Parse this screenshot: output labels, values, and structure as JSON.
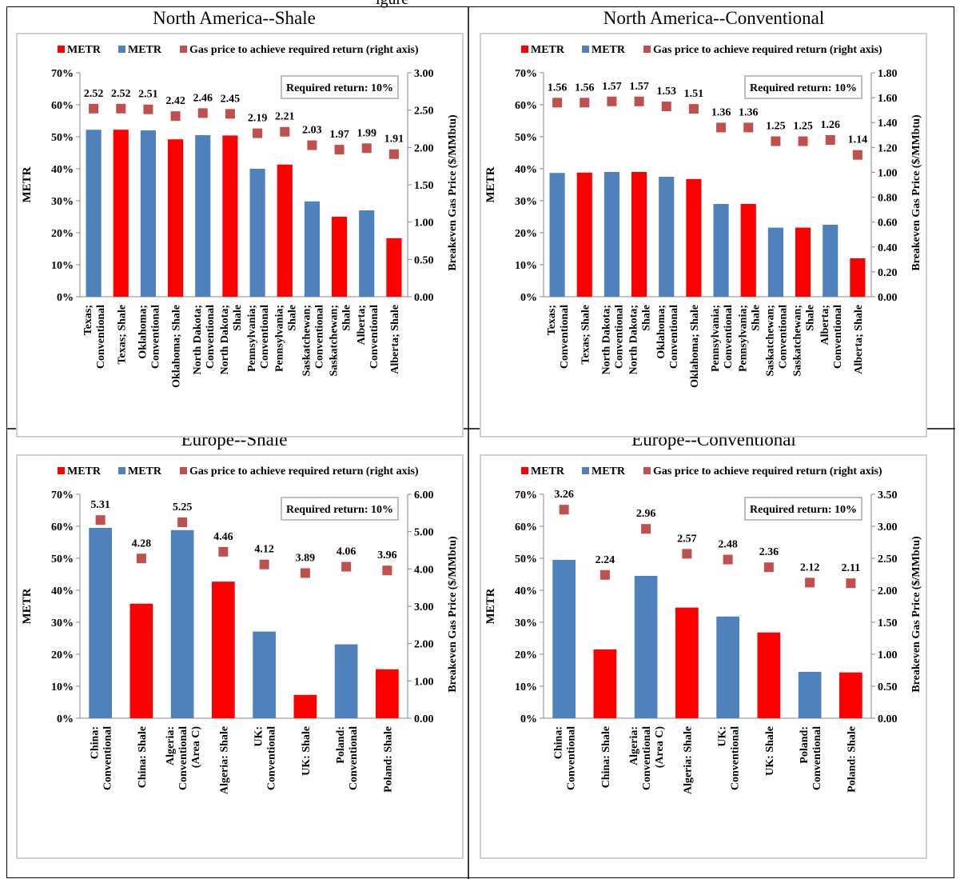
{
  "page_title_fragment": "igure",
  "colors": {
    "shale": "#ff0000",
    "conventional": "#4f81bd",
    "gas_price": "#c0504d"
  },
  "chart_data": [
    {
      "type": "bar",
      "title": "North America--Shale",
      "legend": [
        {
          "label": "METR",
          "color": "#ff0000",
          "shape": "square"
        },
        {
          "label": "METR",
          "color": "#4f81bd",
          "shape": "square"
        },
        {
          "label": "Gas price to achieve required return (right axis)",
          "color": "#c0504d",
          "shape": "square"
        }
      ],
      "legend_placement": "top",
      "annotation": "Required return: 10%",
      "ylabel": "METR",
      "y2label": "Breakeven Gas Price ($/MMbtu)",
      "ylim": [
        0,
        70
      ],
      "y_ticks": [
        "0%",
        "10%",
        "20%",
        "30%",
        "40%",
        "50%",
        "60%",
        "70%"
      ],
      "y2lim": [
        0,
        3
      ],
      "y2_ticks": [
        "0.00",
        "0.50",
        "1.00",
        "1.50",
        "2.00",
        "2.50",
        "3.00"
      ],
      "categories": [
        [
          "Texas;",
          "Conventional"
        ],
        [
          "Texas; Shale"
        ],
        [
          "Oklahoma;",
          "Conventional"
        ],
        [
          "Oklahoma; Shale"
        ],
        [
          "North Dakota;",
          "Conventional"
        ],
        [
          "North Dakota;",
          "Shale"
        ],
        [
          "Pennsylvania;",
          "Conventional"
        ],
        [
          "Pennsylvania;",
          "Shale"
        ],
        [
          "Saskatchewan;",
          "Conventional"
        ],
        [
          "Saskatchewan;",
          "Shale"
        ],
        [
          "Alberta;",
          "Conventional"
        ],
        [
          "Alberta; Shale"
        ]
      ],
      "bar_types": [
        "conventional",
        "shale",
        "conventional",
        "shale",
        "conventional",
        "shale",
        "conventional",
        "shale",
        "conventional",
        "shale",
        "conventional",
        "shale"
      ],
      "metr": [
        52.2,
        52.2,
        52,
        49.2,
        50.5,
        50.4,
        40,
        41.3,
        29.8,
        25,
        27,
        18.3
      ],
      "gas_price": [
        2.52,
        2.52,
        2.51,
        2.42,
        2.46,
        2.45,
        2.19,
        2.21,
        2.03,
        1.97,
        1.99,
        1.91
      ],
      "gas_price_labels": [
        "2.52",
        "2.52",
        "2.51",
        "2.42",
        "2.46",
        "2.45",
        "2.19",
        "2.21",
        "2.03",
        "1.97",
        "1.99",
        "1.91"
      ]
    },
    {
      "type": "bar",
      "title": "North America--Conventional",
      "legend": [
        {
          "label": "METR",
          "color": "#ff0000",
          "shape": "square"
        },
        {
          "label": "METR",
          "color": "#4f81bd",
          "shape": "square"
        },
        {
          "label": "Gas price to achieve required return (right axis)",
          "color": "#c0504d",
          "shape": "square"
        }
      ],
      "legend_placement": "top",
      "annotation": "Required return: 10%",
      "ylabel": "METR",
      "y2label": "Breakeven Gas Price ($/MMbtu)",
      "ylim": [
        0,
        70
      ],
      "y_ticks": [
        "0%",
        "10%",
        "20%",
        "30%",
        "40%",
        "50%",
        "60%",
        "70%"
      ],
      "y2lim": [
        0,
        1.8
      ],
      "y2_ticks": [
        "0.00",
        "0.20",
        "0.40",
        "0.60",
        "0.80",
        "1.00",
        "1.20",
        "1.40",
        "1.60",
        "1.80"
      ],
      "categories": [
        [
          "Texas;",
          "Conventional"
        ],
        [
          "Texas; Shale"
        ],
        [
          "North Dakota;",
          "Conventional"
        ],
        [
          "North Dakota;",
          "Shale"
        ],
        [
          "Oklahoma;",
          "Conventional"
        ],
        [
          "Oklahoma; Shale"
        ],
        [
          "Pennsylvania;",
          "Conventional"
        ],
        [
          "Pennsylvania;",
          "Shale"
        ],
        [
          "Saskatchewan;",
          "Conventional"
        ],
        [
          "Saskatchewan;",
          "Shale"
        ],
        [
          "Alberta;",
          "Conventional"
        ],
        [
          "Alberta; Shale"
        ]
      ],
      "bar_types": [
        "conventional",
        "shale",
        "conventional",
        "shale",
        "conventional",
        "shale",
        "conventional",
        "shale",
        "conventional",
        "shale",
        "conventional",
        "shale"
      ],
      "metr": [
        38.7,
        38.8,
        39,
        39,
        37.5,
        36.8,
        29,
        29,
        21.6,
        21.6,
        22.5,
        12
      ],
      "gas_price": [
        1.56,
        1.56,
        1.57,
        1.57,
        1.53,
        1.51,
        1.36,
        1.36,
        1.25,
        1.25,
        1.26,
        1.14
      ],
      "gas_price_labels": [
        "1.56",
        "1.56",
        "1.57",
        "1.57",
        "1.53",
        "1.51",
        "1.36",
        "1.36",
        "1.25",
        "1.25",
        "1.26",
        "1.14"
      ]
    },
    {
      "type": "bar",
      "title": "Europe--Shale",
      "legend": [
        {
          "label": "METR",
          "color": "#ff0000",
          "shape": "square"
        },
        {
          "label": "METR",
          "color": "#4f81bd",
          "shape": "square"
        },
        {
          "label": "Gas price to achieve required return (right axis)",
          "color": "#c0504d",
          "shape": "square"
        }
      ],
      "legend_placement": "top",
      "annotation": "Required return: 10%",
      "ylabel": "METR",
      "y2label": "Breakeven Gas Price ($/MMbtu)",
      "ylim": [
        0,
        70
      ],
      "y_ticks": [
        "0%",
        "10%",
        "20%",
        "30%",
        "40%",
        "50%",
        "60%",
        "70%"
      ],
      "y2lim": [
        0,
        6
      ],
      "y2_ticks": [
        "0.00",
        "1.00",
        "2.00",
        "3.00",
        "4.00",
        "5.00",
        "6.00"
      ],
      "categories": [
        [
          "China:",
          "Conventional"
        ],
        [
          "China: Shale"
        ],
        [
          "Algeria:",
          "Conventional",
          "(Area C)"
        ],
        [
          "Algeria: Shale"
        ],
        [
          "UK:",
          "Conventional"
        ],
        [
          "UK: Shale"
        ],
        [
          "Poland:",
          "Conventional"
        ],
        [
          "Poland: Shale"
        ]
      ],
      "bar_types": [
        "conventional",
        "shale",
        "conventional",
        "shale",
        "conventional",
        "shale",
        "conventional",
        "shale"
      ],
      "metr": [
        59.5,
        35.8,
        58.8,
        42.7,
        27.1,
        7.3,
        23.1,
        15.3
      ],
      "gas_price": [
        5.31,
        4.28,
        5.25,
        4.46,
        4.12,
        3.89,
        4.06,
        3.96
      ],
      "gas_price_labels": [
        "5.31",
        "4.28",
        "5.25",
        "4.46",
        "4.12",
        "3.89",
        "4.06",
        "3.96"
      ]
    },
    {
      "type": "bar",
      "title": "Europe--Conventional",
      "legend": [
        {
          "label": "METR",
          "color": "#ff0000",
          "shape": "square"
        },
        {
          "label": "METR",
          "color": "#4f81bd",
          "shape": "square"
        },
        {
          "label": "Gas price to achieve required return (right axis)",
          "color": "#c0504d",
          "shape": "square"
        }
      ],
      "legend_placement": "top",
      "annotation": "Required return: 10%",
      "ylabel": "METR",
      "y2label": "Breakeven Gas Price ($/MMbtu)",
      "ylim": [
        0,
        70
      ],
      "y_ticks": [
        "0%",
        "10%",
        "20%",
        "30%",
        "40%",
        "50%",
        "60%",
        "70%"
      ],
      "y2lim": [
        0,
        3.5
      ],
      "y2_ticks": [
        "0.00",
        "0.50",
        "1.00",
        "1.50",
        "2.00",
        "2.50",
        "3.00",
        "3.50"
      ],
      "categories": [
        [
          "China:",
          "Conventional"
        ],
        [
          "China: Shale"
        ],
        [
          "Algeria:",
          "Conventional",
          "(Area C)"
        ],
        [
          "Algeria: Shale"
        ],
        [
          "UK:",
          "Conventional"
        ],
        [
          "UK: Shale"
        ],
        [
          "Poland:",
          "Conventional"
        ],
        [
          "Poland: Shale"
        ]
      ],
      "bar_types": [
        "conventional",
        "shale",
        "conventional",
        "shale",
        "conventional",
        "shale",
        "conventional",
        "shale"
      ],
      "metr": [
        49.5,
        21.5,
        44.5,
        34.6,
        31.8,
        26.8,
        14.5,
        14.3
      ],
      "gas_price": [
        3.26,
        2.24,
        2.96,
        2.57,
        2.48,
        2.36,
        2.12,
        2.11
      ],
      "gas_price_labels": [
        "3.26",
        "2.24",
        "2.96",
        "2.57",
        "2.48",
        "2.36",
        "2.12",
        "2.11"
      ]
    }
  ]
}
